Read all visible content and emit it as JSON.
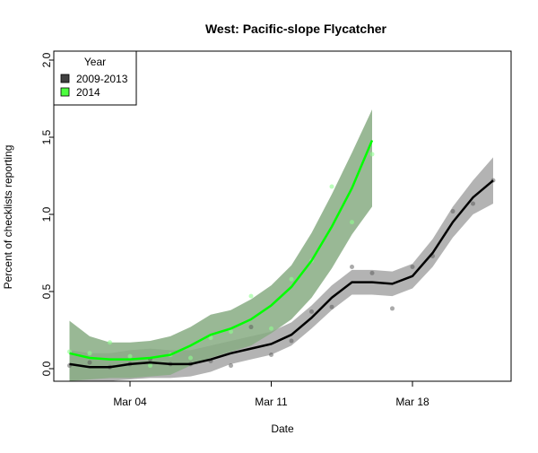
{
  "chart_data": {
    "type": "line",
    "title": "West: Pacific-slope Flycatcher",
    "xlabel": "Date",
    "ylabel": "Percent of checklists reporting",
    "ylim": [
      0,
      2.0
    ],
    "yticks": [
      0.0,
      0.5,
      1.0,
      1.5,
      2.0
    ],
    "ytick_labels": [
      "0.0",
      "0.5",
      "1.0",
      "1.5",
      "2.0"
    ],
    "xlim_day_of_march": [
      0.2,
      23.0
    ],
    "xticks_day_of_march": [
      4,
      11,
      18
    ],
    "xtick_labels": [
      "Mar 04",
      "Mar 11",
      "Mar 18"
    ],
    "legend": {
      "title": "Year",
      "placement": "top-left",
      "entries": [
        "2009-2013",
        "2014"
      ]
    },
    "series": [
      {
        "name": "2009-2013",
        "color": "#000000",
        "band_color": "#b3b3b3",
        "x": [
          1,
          2,
          3,
          4,
          5,
          6,
          7,
          8,
          9,
          10,
          11,
          12,
          13,
          14,
          15,
          16,
          17,
          18,
          19,
          20,
          21,
          22
        ],
        "values": [
          0.03,
          0.01,
          0.01,
          0.03,
          0.04,
          0.03,
          0.03,
          0.06,
          0.1,
          0.13,
          0.16,
          0.22,
          0.33,
          0.46,
          0.56,
          0.56,
          0.55,
          0.6,
          0.75,
          0.95,
          1.11,
          1.22
        ],
        "lower": [
          -0.08,
          -0.08,
          -0.08,
          -0.07,
          -0.06,
          -0.06,
          -0.05,
          -0.02,
          0.03,
          0.06,
          0.09,
          0.15,
          0.26,
          0.38,
          0.48,
          0.48,
          0.47,
          0.52,
          0.66,
          0.85,
          1.0,
          1.07
        ],
        "upper": [
          0.12,
          0.1,
          0.1,
          0.12,
          0.13,
          0.12,
          0.12,
          0.15,
          0.18,
          0.21,
          0.24,
          0.3,
          0.41,
          0.54,
          0.64,
          0.64,
          0.63,
          0.68,
          0.84,
          1.05,
          1.22,
          1.37
        ],
        "points": [
          0.02,
          0.04,
          0.01,
          0.03,
          0.06,
          0.03,
          0.03,
          0.05,
          0.02,
          0.27,
          0.09,
          0.18,
          0.37,
          0.4,
          0.66,
          0.62,
          0.39,
          0.66,
          0.73,
          1.02,
          1.07,
          1.22
        ]
      },
      {
        "name": "2014",
        "color": "#00ff00",
        "band_color": "#87ab82",
        "x": [
          1,
          2,
          3,
          4,
          5,
          6,
          7,
          8,
          9,
          10,
          11,
          12,
          13,
          14,
          15,
          16
        ],
        "values": [
          0.1,
          0.07,
          0.06,
          0.06,
          0.07,
          0.09,
          0.15,
          0.22,
          0.26,
          0.32,
          0.41,
          0.53,
          0.7,
          0.92,
          1.17,
          1.48
        ],
        "lower": [
          -0.09,
          -0.07,
          -0.06,
          -0.06,
          -0.05,
          -0.04,
          0.02,
          0.07,
          0.11,
          0.15,
          0.23,
          0.32,
          0.46,
          0.65,
          0.87,
          1.05
        ],
        "upper": [
          0.31,
          0.21,
          0.17,
          0.17,
          0.18,
          0.21,
          0.27,
          0.35,
          0.38,
          0.45,
          0.54,
          0.67,
          0.88,
          1.13,
          1.4,
          1.68
        ],
        "points": [
          0.11,
          0.1,
          0.17,
          0.08,
          0.02,
          0.09,
          0.07,
          0.2,
          0.24,
          0.47,
          0.26,
          0.58,
          0.7,
          1.18,
          0.95,
          1.39
        ]
      }
    ]
  }
}
